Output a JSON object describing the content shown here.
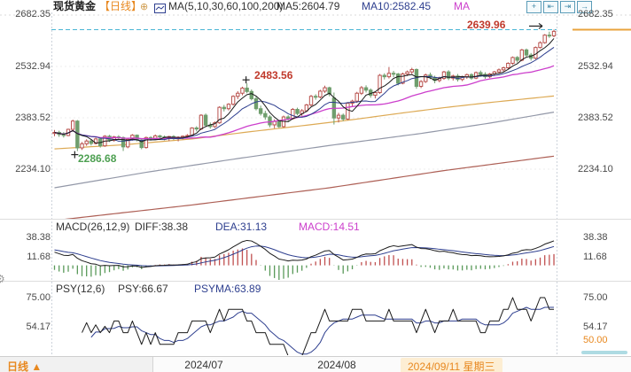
{
  "header": {
    "title": "现货黄金",
    "period": "【日线】",
    "ma_settings": "MA(5,10,30,60,100,200)",
    "ma5": "MA5:2604.79",
    "ma10": "MA10:2582.45",
    "ma30": "MA"
  },
  "toolbar": {
    "crosshair": "+",
    "pan_left": "⇤",
    "pan_right": "⇥",
    "export": "→"
  },
  "axis": {
    "main_left": [
      "2682.35",
      "2532.94",
      "2383.52",
      "2234.10"
    ],
    "main_right": [
      "2682.35",
      "2532.94",
      "2383.52",
      "2234.10"
    ],
    "macd_left": [
      "38.38",
      "11.68"
    ],
    "macd_right": [
      "38.38",
      "11.68"
    ],
    "psy_left": [
      "75.00",
      "54.17"
    ],
    "psy_right": [
      "75.00",
      "54.17",
      "50.00"
    ]
  },
  "annotations": {
    "low": "2286.68",
    "peak": "2483.56",
    "high": "2639.96"
  },
  "macd_legend": {
    "title": "MACD(26,12,9)",
    "diff": "DIFF:38.38",
    "dea": "DEA:31.13",
    "macd": "MACD:14.51"
  },
  "psy_legend": {
    "title": "PSY(12,6)",
    "psy": "PSY:66.67",
    "psyma": "PSYMA:63.89"
  },
  "footer": {
    "period": "日线 ▲",
    "months": [
      "2024/07",
      "2024/08"
    ],
    "selected_date": "2024/09/11 星期三"
  },
  "colors": {
    "up": "#b9524e",
    "down": "#6f9e6d",
    "ma5": "#1a1a1a",
    "ma10": "#2e3f8f",
    "ma30": "#cc3fcc",
    "ma60": "#ddaa55",
    "ma100": "#9398a8",
    "ma200": "#ad5f55",
    "high_line": "#4ab5d5",
    "accent_orange": "#e8a33c",
    "bar_up": "#c05050",
    "bar_down": "#5a9a5a"
  },
  "chart_data": {
    "type": "candlestick",
    "title": "现货黄金 日线",
    "legend_position": "top",
    "grid": "dotted-horizontal",
    "x_ticks": {
      "month_ticks": [
        {
          "label": "2024/07",
          "index": 32
        },
        {
          "label": "2024/08",
          "index": 61
        }
      ],
      "selected": {
        "label": "2024/09/11 星期三",
        "index": 86
      }
    },
    "y_axis_main": {
      "ticks": [
        2682.35,
        2532.94,
        2383.52,
        2234.1
      ]
    },
    "y_axis_macd": {
      "ticks": [
        38.38,
        11.68
      ]
    },
    "y_axis_psy": {
      "ticks": [
        75.0,
        54.17,
        50.0
      ]
    },
    "markers": {
      "low": {
        "index": 5,
        "price": 2286.68
      },
      "peak": {
        "index": 42,
        "price": 2483.56
      },
      "high": {
        "index": 109,
        "price": 2639.96
      }
    },
    "indicators": {
      "ma_periods": [
        5,
        10,
        30,
        60,
        100,
        200
      ],
      "macd": {
        "slow": 26,
        "fast": 12,
        "signal": 9,
        "diff": 38.38,
        "dea": 31.13,
        "macd": 14.51
      },
      "psy": {
        "period": 12,
        "ma": 6,
        "psy": 66.67,
        "psyma": 63.89
      }
    },
    "ma_anchor_lines": {
      "ma60": [
        [
          0,
          2293
        ],
        [
          15,
          2305
        ],
        [
          30,
          2322
        ],
        [
          42,
          2342
        ],
        [
          55,
          2362
        ],
        [
          65,
          2378
        ],
        [
          75,
          2396
        ],
        [
          85,
          2413
        ],
        [
          95,
          2428
        ],
        [
          109,
          2447
        ]
      ],
      "ma100": [
        [
          0,
          2180
        ],
        [
          20,
          2225
        ],
        [
          40,
          2265
        ],
        [
          60,
          2303
        ],
        [
          80,
          2338
        ],
        [
          95,
          2368
        ],
        [
          109,
          2400
        ]
      ],
      "ma200": [
        [
          0,
          2085
        ],
        [
          30,
          2130
        ],
        [
          60,
          2180
        ],
        [
          85,
          2230
        ],
        [
          109,
          2272
        ]
      ]
    },
    "candles": [
      [
        2338,
        2348,
        2330,
        2341
      ],
      [
        2341,
        2346,
        2328,
        2335
      ],
      [
        2335,
        2342,
        2326,
        2332
      ],
      [
        2332,
        2352,
        2330,
        2350
      ],
      [
        2350,
        2378,
        2347,
        2374
      ],
      [
        2374,
        2377,
        2286.68,
        2296
      ],
      [
        2296,
        2313,
        2290,
        2308
      ],
      [
        2308,
        2321,
        2302,
        2316
      ],
      [
        2316,
        2320,
        2303,
        2309
      ],
      [
        2309,
        2326,
        2306,
        2322
      ],
      [
        2322,
        2325,
        2297,
        2302
      ],
      [
        2302,
        2333,
        2299,
        2330
      ],
      [
        2330,
        2334,
        2313,
        2318
      ],
      [
        2318,
        2331,
        2314,
        2328
      ],
      [
        2328,
        2333,
        2320,
        2326
      ],
      [
        2326,
        2329,
        2287,
        2299
      ],
      [
        2299,
        2324,
        2295,
        2321
      ],
      [
        2321,
        2336,
        2317,
        2333
      ],
      [
        2333,
        2335,
        2315,
        2319
      ],
      [
        2319,
        2322,
        2292,
        2297
      ],
      [
        2297,
        2329,
        2294,
        2326
      ],
      [
        2326,
        2330,
        2317,
        2324
      ],
      [
        2324,
        2335,
        2320,
        2331
      ],
      [
        2331,
        2334,
        2322,
        2328
      ],
      [
        2328,
        2332,
        2318,
        2324
      ],
      [
        2324,
        2331,
        2316,
        2329
      ],
      [
        2329,
        2333,
        2319,
        2323
      ],
      [
        2323,
        2330,
        2315,
        2327
      ],
      [
        2327,
        2332,
        2321,
        2330
      ],
      [
        2330,
        2336,
        2324,
        2332
      ],
      [
        2332,
        2356,
        2329,
        2354
      ],
      [
        2354,
        2359,
        2344,
        2351
      ],
      [
        2351,
        2394,
        2348,
        2391
      ],
      [
        2391,
        2396,
        2357,
        2362
      ],
      [
        2362,
        2370,
        2352,
        2358
      ],
      [
        2358,
        2373,
        2354,
        2369
      ],
      [
        2369,
        2417,
        2366,
        2414
      ],
      [
        2414,
        2421,
        2402,
        2410
      ],
      [
        2410,
        2426,
        2405,
        2423
      ],
      [
        2423,
        2449,
        2419,
        2446
      ],
      [
        2446,
        2461,
        2438,
        2455
      ],
      [
        2455,
        2474,
        2449,
        2470
      ],
      [
        2470,
        2483.56,
        2455,
        2460
      ],
      [
        2460,
        2466,
        2434,
        2439
      ],
      [
        2439,
        2445,
        2405,
        2410
      ],
      [
        2410,
        2419,
        2390,
        2396
      ],
      [
        2396,
        2404,
        2378,
        2386
      ],
      [
        2386,
        2391,
        2356,
        2363
      ],
      [
        2363,
        2379,
        2353,
        2373
      ],
      [
        2373,
        2377,
        2354,
        2358
      ],
      [
        2358,
        2390,
        2355,
        2386
      ],
      [
        2386,
        2391,
        2374,
        2381
      ],
      [
        2381,
        2412,
        2378,
        2408
      ],
      [
        2408,
        2413,
        2391,
        2396
      ],
      [
        2396,
        2409,
        2389,
        2404
      ],
      [
        2404,
        2424,
        2400,
        2421
      ],
      [
        2421,
        2450,
        2417,
        2446
      ],
      [
        2446,
        2452,
        2436,
        2444
      ],
      [
        2444,
        2465,
        2440,
        2461
      ],
      [
        2461,
        2477,
        2456,
        2471
      ],
      [
        2471,
        2474,
        2446,
        2453
      ],
      [
        2441,
        2457,
        2364,
        2383
      ],
      [
        2383,
        2398,
        2370,
        2391
      ],
      [
        2391,
        2396,
        2374,
        2380
      ],
      [
        2380,
        2429,
        2377,
        2426
      ],
      [
        2426,
        2436,
        2417,
        2432
      ],
      [
        2432,
        2459,
        2427,
        2455
      ],
      [
        2455,
        2476,
        2450,
        2471
      ],
      [
        2471,
        2478,
        2457,
        2464
      ],
      [
        2464,
        2469,
        2442,
        2449
      ],
      [
        2449,
        2460,
        2440,
        2457
      ],
      [
        2457,
        2511,
        2453,
        2507
      ],
      [
        2507,
        2513,
        2495,
        2503
      ],
      [
        2503,
        2531,
        2498,
        2513
      ],
      [
        2513,
        2520,
        2502,
        2511
      ],
      [
        2511,
        2514,
        2478,
        2484
      ],
      [
        2484,
        2515,
        2481,
        2511
      ],
      [
        2511,
        2521,
        2505,
        2517
      ],
      [
        2517,
        2529,
        2511,
        2524
      ],
      [
        2524,
        2527,
        2468,
        2475
      ],
      [
        2475,
        2493,
        2470,
        2489
      ],
      [
        2489,
        2512,
        2485,
        2508
      ],
      [
        2508,
        2515,
        2496,
        2501
      ],
      [
        2501,
        2506,
        2484,
        2492
      ],
      [
        2492,
        2503,
        2487,
        2498
      ],
      [
        2498,
        2520,
        2494,
        2517
      ],
      [
        2517,
        2522,
        2493,
        2499
      ],
      [
        2499,
        2509,
        2492,
        2505
      ],
      [
        2505,
        2511,
        2489,
        2495
      ],
      [
        2495,
        2506,
        2490,
        2503
      ],
      [
        2503,
        2512,
        2497,
        2509
      ],
      [
        2509,
        2513,
        2494,
        2499
      ],
      [
        2499,
        2518,
        2496,
        2515
      ],
      [
        2515,
        2521,
        2503,
        2510
      ],
      [
        2510,
        2516,
        2497,
        2503
      ],
      [
        2503,
        2514,
        2499,
        2511
      ],
      [
        2511,
        2520,
        2505,
        2517
      ],
      [
        2517,
        2527,
        2512,
        2523
      ],
      [
        2523,
        2532,
        2518,
        2529
      ],
      [
        2529,
        2545,
        2525,
        2542
      ],
      [
        2542,
        2562,
        2538,
        2559
      ],
      [
        2559,
        2563,
        2544,
        2551
      ],
      [
        2551,
        2584,
        2548,
        2581
      ],
      [
        2581,
        2585,
        2561,
        2566
      ],
      [
        2566,
        2572,
        2550,
        2557
      ],
      [
        2557,
        2591,
        2553,
        2588
      ],
      [
        2588,
        2606,
        2585,
        2602
      ],
      [
        2602,
        2627,
        2599,
        2624
      ],
      [
        2624,
        2634,
        2616,
        2622
      ],
      [
        2622,
        2639.96,
        2618,
        2635
      ]
    ]
  }
}
